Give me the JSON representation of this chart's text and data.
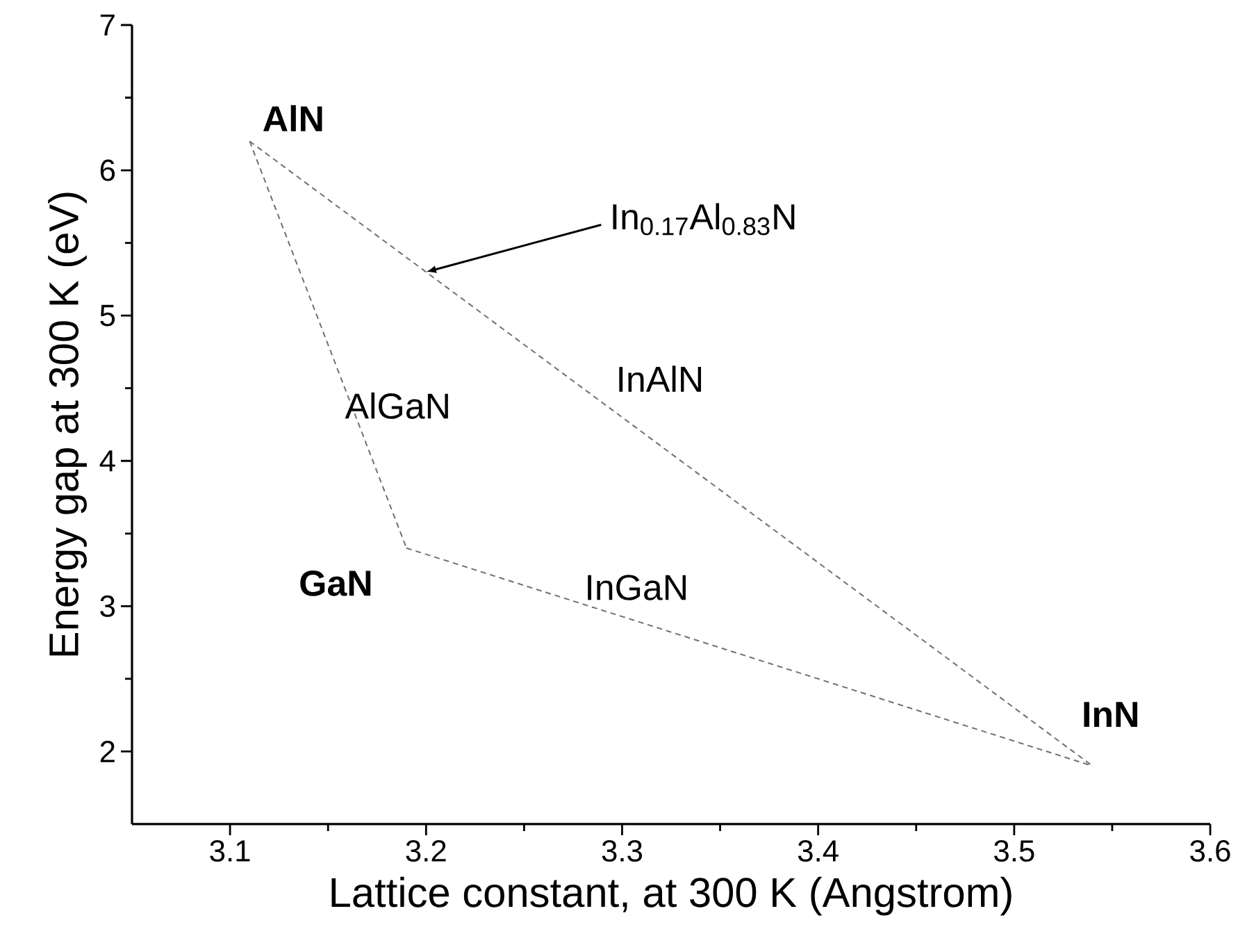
{
  "chart_data": {
    "type": "line",
    "xlabel": "Lattice constant, at 300 K (Angstrom)",
    "ylabel": "Energy gap at 300 K (eV)",
    "xlim": [
      3.05,
      3.6
    ],
    "ylim": [
      1.5,
      7
    ],
    "xticks": [
      3.1,
      3.2,
      3.3,
      3.4,
      3.5,
      3.6
    ],
    "yticks": [
      2,
      3,
      4,
      5,
      6,
      7
    ],
    "grid": false,
    "marker": "none",
    "line_style": "dashed",
    "series": [
      {
        "color": "#707070",
        "x": [
          3.11,
          3.19
        ],
        "values": [
          6.2,
          3.4
        ]
      },
      {
        "color": "#707070",
        "x": [
          3.19,
          3.54
        ],
        "values": [
          3.4,
          1.9
        ]
      },
      {
        "color": "#707070",
        "x": [
          3.11,
          3.54
        ],
        "values": [
          6.2,
          1.9
        ]
      }
    ],
    "annotations": [
      {
        "text": "**AlN**",
        "x": 3.11,
        "y": 6.2
      },
      {
        "text": "**GaN**",
        "x": 3.19,
        "y": 3.4
      },
      {
        "text": "**InN**",
        "x": 3.54,
        "y": 1.9
      },
      {
        "text": "AlGaN",
        "x": 3.162,
        "y": 4.38
      },
      {
        "text": "InGaN",
        "x": 3.28,
        "y": 3.01
      },
      {
        "text": "InAlN",
        "x": 3.296,
        "y": 4.34
      },
      {
        "text": "In$_{0.17}$Al$_{0.83}$N",
        "x": 3.2,
        "y": 5.3
      }
    ]
  }
}
